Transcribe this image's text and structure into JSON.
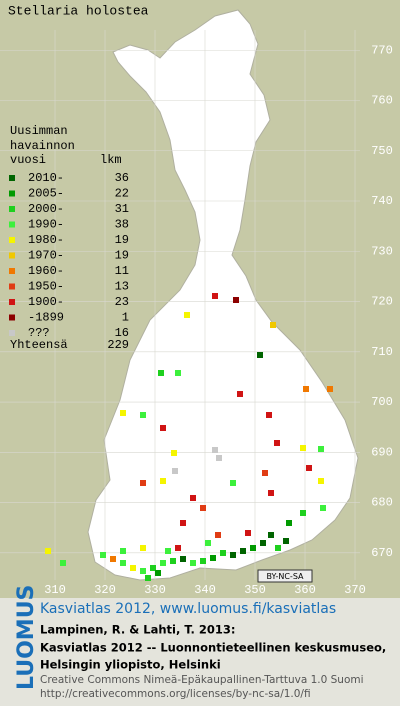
{
  "map": {
    "title": "Stellaria holostea",
    "grid": {
      "xlim": [
        299,
        379
      ],
      "ylim": [
        661,
        780
      ],
      "xticks": [
        310,
        320,
        330,
        340,
        350,
        360,
        370
      ],
      "yticks": [
        670,
        680,
        690,
        700,
        710,
        720,
        730,
        740,
        750,
        760,
        770
      ]
    },
    "legend": {
      "heading": [
        "Uusimman",
        "havainnon",
        "vuosi"
      ],
      "count_heading": "lkm",
      "rows": [
        {
          "label": "2010-",
          "count": 36,
          "color": "#006400"
        },
        {
          "label": "2005-",
          "count": 22,
          "color": "#009a00"
        },
        {
          "label": "2000-",
          "count": 31,
          "color": "#1ed01e"
        },
        {
          "label": "1990-",
          "count": 38,
          "color": "#3cf03c"
        },
        {
          "label": "1980-",
          "count": 19,
          "color": "#f5f500"
        },
        {
          "label": "1970-",
          "count": 19,
          "color": "#f0c800"
        },
        {
          "label": "1960-",
          "count": 11,
          "color": "#f07800"
        },
        {
          "label": "1950-",
          "count": 13,
          "color": "#e03c14"
        },
        {
          "label": "1900-",
          "count": 23,
          "color": "#d01414"
        },
        {
          "label": "-1899",
          "count": 1,
          "color": "#8c0000"
        },
        {
          "label": "???",
          "count": 16,
          "color": "#c8c8c8"
        }
      ],
      "total_label": "Yhteensä",
      "total": 229
    },
    "license_badge": "BY-NC-SA"
  },
  "footer": {
    "logo": "LUOMUS",
    "link": "Kasviatlas 2012, www.luomus.fi/kasviatlas",
    "citation": [
      "Lampinen, R. & Lahti, T. 2013:",
      "Kasviatlas 2012 -- Luonnontieteellinen keskusmuseo,",
      "Helsingin yliopisto, Helsinki"
    ],
    "license": [
      "Creative Commons Nimeä-Epäkaupallinen-Tarttuva 1.0 Suomi",
      "http://creativecommons.org/licenses/by-nc-sa/1.0/fi"
    ]
  }
}
